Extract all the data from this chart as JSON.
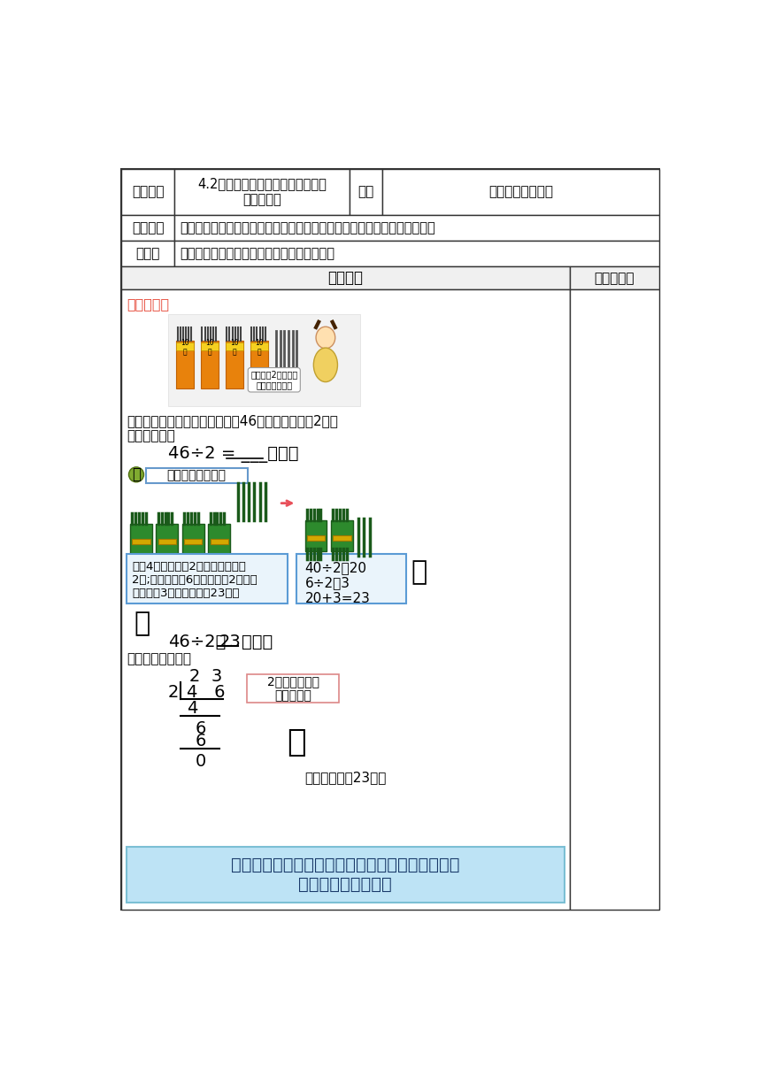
{
  "bg_color": "#ffffff",
  "table_border": "#333333",
  "red_color": "#e74c3c",
  "summary_bg": "#bde3f5",
  "summary_border": "#7bbfd4",
  "box_bg": "#eaf4fb",
  "box_border": "#5b9bd5",
  "section_bg": "#f0f0f0",
  "row1_label": "课题名称",
  "row1_content": "4.2笔算两、三位数除以一位数（首\n位能整除）",
  "row1_grade_label": "年级",
  "row1_grade_content": "三年级上第四单元",
  "row2_label": "课题目标",
  "row2_content": "探索两、三位数除以一位数（首位能整除）的计算，理解和掌握笔算的方法",
  "row3_label": "重难点",
  "row3_content": "两、三位数除以一位数（首位能整除）的计算",
  "section_left": "知识再现",
  "section_right": "订正与总结",
  "classic_label": "经典例题：",
  "desc1": "要知道每班分得多少支，就要把46支铅笔平均分成2份，",
  "desc2": "用除法计算。",
  "eq1": "46÷2 = ___（支）",
  "stick_label": "先用小棒摊一摊。",
  "left_box": "先把4简平均分给2个组，每组分得\n2简;再把余下的6个平均分给2个组，\n每组分徙3个，合起来是23个。",
  "right_box": "40÷2＝20\n6÷2＝3\n20+3=23",
  "eq2_prefix": "46÷2＝",
  "eq2_answer": "23",
  "eq2_suffix": "（支）",
  "bishi": "可以用竖式计算。",
  "callout": "2为什么写在商\n的十位上？",
  "answer": "答：每班分得23支。",
  "summary": "两、三位数除以一位数，从高位算起，除到哪一位\n商就写在那一位上。"
}
